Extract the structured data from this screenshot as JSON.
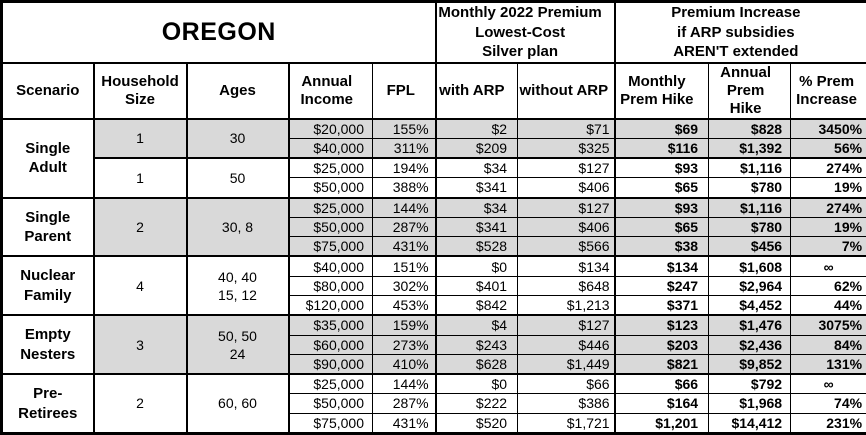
{
  "title": "OREGON",
  "colors": {
    "shaded_row": "#d9d9d9",
    "border": "#000000",
    "background": "#ffffff"
  },
  "header": {
    "premium_group": "Monthly 2022 Premium\nLowest-Cost\nSilver plan",
    "increase_group": "Premium Increase\nif ARP subsidies\nAREN'T extended",
    "columns": {
      "scenario": "Scenario",
      "household_size": "Household\nSize",
      "ages": "Ages",
      "annual_income": "Annual\nIncome",
      "fpl": "FPL",
      "with_arp": "with ARP",
      "without_arp": "without ARP",
      "monthly_hike": "Monthly\nPrem Hike",
      "annual_hike": "Annual\nPrem Hike",
      "pct_increase": "% Prem\nIncrease"
    }
  },
  "groups": [
    {
      "scenario": "Single\nAdult",
      "subgroups": [
        {
          "household_size": "1",
          "ages": "30",
          "shaded": true,
          "rows": [
            {
              "income": "$20,000",
              "fpl": "155%",
              "with_arp": "$2",
              "without_arp": "$71",
              "monthly_hike": "$69",
              "annual_hike": "$828",
              "pct_increase": "3450%"
            },
            {
              "income": "$40,000",
              "fpl": "311%",
              "with_arp": "$209",
              "without_arp": "$325",
              "monthly_hike": "$116",
              "annual_hike": "$1,392",
              "pct_increase": "56%"
            }
          ]
        },
        {
          "household_size": "1",
          "ages": "50",
          "shaded": false,
          "rows": [
            {
              "income": "$25,000",
              "fpl": "194%",
              "with_arp": "$34",
              "without_arp": "$127",
              "monthly_hike": "$93",
              "annual_hike": "$1,116",
              "pct_increase": "274%"
            },
            {
              "income": "$50,000",
              "fpl": "388%",
              "with_arp": "$341",
              "without_arp": "$406",
              "monthly_hike": "$65",
              "annual_hike": "$780",
              "pct_increase": "19%"
            }
          ]
        }
      ]
    },
    {
      "scenario": "Single\nParent",
      "subgroups": [
        {
          "household_size": "2",
          "ages": "30, 8",
          "shaded": true,
          "rows": [
            {
              "income": "$25,000",
              "fpl": "144%",
              "with_arp": "$34",
              "without_arp": "$127",
              "monthly_hike": "$93",
              "annual_hike": "$1,116",
              "pct_increase": "274%"
            },
            {
              "income": "$50,000",
              "fpl": "287%",
              "with_arp": "$341",
              "without_arp": "$406",
              "monthly_hike": "$65",
              "annual_hike": "$780",
              "pct_increase": "19%"
            },
            {
              "income": "$75,000",
              "fpl": "431%",
              "with_arp": "$528",
              "without_arp": "$566",
              "monthly_hike": "$38",
              "annual_hike": "$456",
              "pct_increase": "7%"
            }
          ]
        }
      ]
    },
    {
      "scenario": "Nuclear\nFamily",
      "subgroups": [
        {
          "household_size": "4",
          "ages": "40, 40\n15, 12",
          "shaded": false,
          "rows": [
            {
              "income": "$40,000",
              "fpl": "151%",
              "with_arp": "$0",
              "without_arp": "$134",
              "monthly_hike": "$134",
              "annual_hike": "$1,608",
              "pct_increase": "∞"
            },
            {
              "income": "$80,000",
              "fpl": "302%",
              "with_arp": "$401",
              "without_arp": "$648",
              "monthly_hike": "$247",
              "annual_hike": "$2,964",
              "pct_increase": "62%"
            },
            {
              "income": "$120,000",
              "fpl": "453%",
              "with_arp": "$842",
              "without_arp": "$1,213",
              "monthly_hike": "$371",
              "annual_hike": "$4,452",
              "pct_increase": "44%"
            }
          ]
        }
      ]
    },
    {
      "scenario": "Empty\nNesters",
      "subgroups": [
        {
          "household_size": "3",
          "ages": "50, 50\n24",
          "shaded": true,
          "rows": [
            {
              "income": "$35,000",
              "fpl": "159%",
              "with_arp": "$4",
              "without_arp": "$127",
              "monthly_hike": "$123",
              "annual_hike": "$1,476",
              "pct_increase": "3075%"
            },
            {
              "income": "$60,000",
              "fpl": "273%",
              "with_arp": "$243",
              "without_arp": "$446",
              "monthly_hike": "$203",
              "annual_hike": "$2,436",
              "pct_increase": "84%"
            },
            {
              "income": "$90,000",
              "fpl": "410%",
              "with_arp": "$628",
              "without_arp": "$1,449",
              "monthly_hike": "$821",
              "annual_hike": "$9,852",
              "pct_increase": "131%"
            }
          ]
        }
      ]
    },
    {
      "scenario": "Pre-\nRetirees",
      "subgroups": [
        {
          "household_size": "2",
          "ages": "60, 60",
          "shaded": false,
          "rows": [
            {
              "income": "$25,000",
              "fpl": "144%",
              "with_arp": "$0",
              "without_arp": "$66",
              "monthly_hike": "$66",
              "annual_hike": "$792",
              "pct_increase": "∞"
            },
            {
              "income": "$50,000",
              "fpl": "287%",
              "with_arp": "$222",
              "without_arp": "$386",
              "monthly_hike": "$164",
              "annual_hike": "$1,968",
              "pct_increase": "74%"
            },
            {
              "income": "$75,000",
              "fpl": "431%",
              "with_arp": "$520",
              "without_arp": "$1,721",
              "monthly_hike": "$1,201",
              "annual_hike": "$14,412",
              "pct_increase": "231%"
            }
          ]
        }
      ]
    }
  ]
}
